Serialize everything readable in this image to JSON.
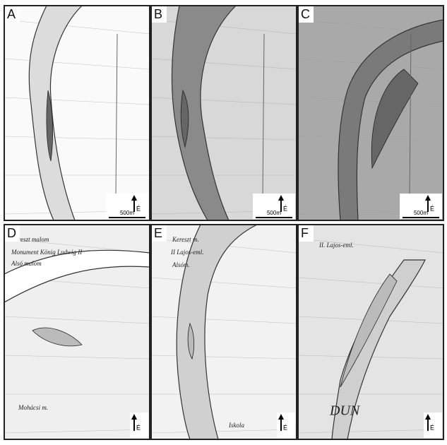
{
  "panels": [
    {
      "label": "A",
      "north": "É",
      "scale": "500m",
      "texts": []
    },
    {
      "label": "B",
      "north": "É",
      "scale": "500m",
      "texts": []
    },
    {
      "label": "C",
      "north": "É",
      "scale": "500m",
      "texts": []
    },
    {
      "label": "D",
      "north": "É",
      "texts": [
        "Kereszt malom",
        "Monument König Ludwig II",
        "Alsó malom",
        "Mohácsi m."
      ]
    },
    {
      "label": "E",
      "north": "É",
      "texts": [
        "Kereszt m.",
        "II Lajos-eml.",
        "Alsóm.",
        "Iskola"
      ]
    },
    {
      "label": "F",
      "north": "É",
      "texts": [
        "II. Lajos-eml.",
        "DUN"
      ]
    }
  ]
}
